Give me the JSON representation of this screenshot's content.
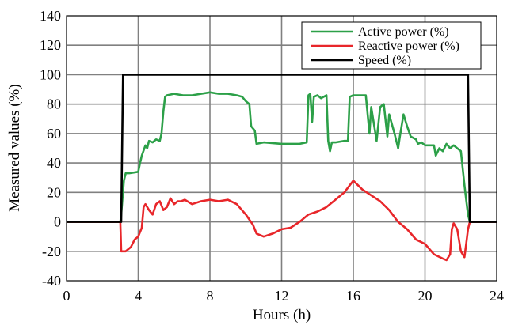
{
  "chart_data": {
    "type": "line",
    "title": "",
    "xlabel": "Hours (h)",
    "ylabel": "Measured values (%)",
    "xlim": [
      0,
      24
    ],
    "ylim": [
      -40,
      140
    ],
    "xticks": [
      0,
      4,
      8,
      12,
      16,
      20,
      24
    ],
    "yticks": [
      -40,
      -20,
      0,
      20,
      40,
      60,
      80,
      100,
      120,
      140
    ],
    "grid": true,
    "legend_position": "top-right",
    "series": [
      {
        "name": "Active power (%)",
        "color": "#2ca048",
        "x": [
          0,
          3.0,
          3.05,
          3.2,
          3.3,
          3.5,
          4.0,
          4.1,
          4.2,
          4.4,
          4.5,
          4.6,
          4.8,
          5.0,
          5.2,
          5.3,
          5.4,
          5.5,
          5.6,
          6.0,
          6.5,
          7.0,
          7.5,
          8.0,
          8.5,
          9.0,
          9.5,
          9.8,
          10.0,
          10.2,
          10.3,
          10.5,
          10.6,
          11.0,
          12.0,
          13.0,
          13.4,
          13.5,
          13.6,
          13.7,
          13.8,
          14.0,
          14.2,
          14.5,
          14.6,
          14.7,
          14.8,
          15.0,
          15.5,
          15.7,
          15.8,
          16.0,
          16.3,
          16.7,
          16.9,
          17.0,
          17.3,
          17.5,
          17.7,
          17.9,
          18.0,
          18.3,
          18.5,
          18.6,
          18.8,
          19.0,
          19.2,
          19.5,
          19.6,
          19.8,
          20.0,
          20.5,
          20.6,
          20.8,
          21.0,
          21.2,
          21.4,
          21.6,
          21.8,
          22.0,
          22.2,
          22.3,
          22.4,
          22.5,
          24
        ],
        "values": [
          0,
          0,
          5,
          28,
          33,
          33,
          34,
          40,
          45,
          52,
          50,
          55,
          54,
          56,
          55,
          60,
          75,
          85,
          86,
          87,
          86,
          86,
          87,
          88,
          87,
          87,
          86,
          85,
          82,
          80,
          65,
          62,
          53,
          54,
          53,
          53,
          54,
          86,
          87,
          68,
          85,
          86,
          84,
          86,
          55,
          48,
          54,
          54,
          55,
          55,
          85,
          86,
          86,
          86,
          60,
          78,
          55,
          78,
          80,
          58,
          73,
          60,
          50,
          58,
          73,
          65,
          58,
          56,
          53,
          54,
          52,
          52,
          45,
          50,
          48,
          53,
          50,
          52,
          50,
          48,
          25,
          15,
          5,
          0,
          0
        ]
      },
      {
        "name": "Reactive power (%)",
        "color": "#e8262a",
        "x": [
          0,
          3.0,
          3.05,
          3.3,
          3.6,
          3.8,
          4.0,
          4.2,
          4.3,
          4.4,
          4.6,
          4.8,
          5.0,
          5.2,
          5.4,
          5.6,
          5.8,
          6.0,
          6.2,
          6.4,
          6.6,
          7.0,
          7.5,
          8.0,
          8.5,
          9.0,
          9.5,
          10.0,
          10.4,
          10.6,
          10.8,
          11.0,
          11.5,
          12.0,
          12.5,
          13.0,
          13.5,
          14.0,
          14.5,
          15.0,
          15.5,
          16.0,
          16.5,
          17.0,
          17.5,
          18.0,
          18.5,
          19.0,
          19.5,
          20.0,
          20.5,
          21.0,
          21.2,
          21.4,
          21.5,
          21.6,
          21.8,
          22.0,
          22.2,
          22.3,
          22.4,
          22.5,
          24
        ],
        "values": [
          0,
          0,
          -20,
          -20,
          -17,
          -12,
          -10,
          -4,
          10,
          12,
          8,
          5,
          12,
          14,
          8,
          10,
          16,
          12,
          14,
          14,
          15,
          12,
          14,
          15,
          14,
          15,
          12,
          5,
          -2,
          -8,
          -9,
          -10,
          -8,
          -5,
          -4,
          0,
          5,
          7,
          10,
          15,
          20,
          28,
          22,
          18,
          14,
          8,
          0,
          -5,
          -12,
          -15,
          -22,
          -25,
          -26,
          -22,
          -5,
          -1,
          -5,
          -20,
          -24,
          -15,
          -5,
          0,
          0
        ]
      },
      {
        "name": "Speed (%)",
        "color": "#000000",
        "x": [
          0,
          3.05,
          3.15,
          22.4,
          22.5,
          24
        ],
        "values": [
          0,
          0,
          100,
          100,
          0,
          0
        ]
      }
    ]
  }
}
